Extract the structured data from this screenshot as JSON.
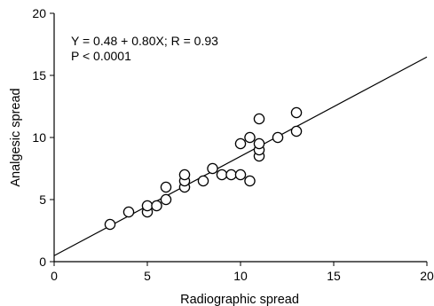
{
  "chart_data": {
    "type": "scatter",
    "title": "",
    "xlabel": "Radiographic spread",
    "ylabel": "Analgesic spread",
    "xlim": [
      0,
      20
    ],
    "ylim": [
      0,
      20
    ],
    "xticks": [
      0,
      5,
      10,
      15,
      20
    ],
    "yticks": [
      0,
      5,
      10,
      15,
      20
    ],
    "grid": false,
    "annotations": [
      "Y = 0.48 + 0.80X; R = 0.93",
      "P < 0.0001"
    ],
    "fit_line": {
      "intercept": 0.48,
      "slope": 0.8
    },
    "points": [
      {
        "x": 3,
        "y": 3
      },
      {
        "x": 4,
        "y": 4
      },
      {
        "x": 5,
        "y": 4
      },
      {
        "x": 5,
        "y": 4.5
      },
      {
        "x": 5.5,
        "y": 4.5
      },
      {
        "x": 6,
        "y": 5
      },
      {
        "x": 6,
        "y": 6
      },
      {
        "x": 7,
        "y": 6
      },
      {
        "x": 7,
        "y": 6.5
      },
      {
        "x": 7,
        "y": 7
      },
      {
        "x": 8,
        "y": 6.5
      },
      {
        "x": 8.5,
        "y": 7.5
      },
      {
        "x": 9,
        "y": 7
      },
      {
        "x": 9.5,
        "y": 7
      },
      {
        "x": 10,
        "y": 7
      },
      {
        "x": 10.5,
        "y": 6.5
      },
      {
        "x": 10,
        "y": 9.5
      },
      {
        "x": 10.5,
        "y": 10
      },
      {
        "x": 11,
        "y": 8.5
      },
      {
        "x": 11,
        "y": 9
      },
      {
        "x": 11,
        "y": 9.5
      },
      {
        "x": 11,
        "y": 11.5
      },
      {
        "x": 12,
        "y": 10
      },
      {
        "x": 13,
        "y": 10.5
      },
      {
        "x": 13,
        "y": 12
      }
    ]
  }
}
